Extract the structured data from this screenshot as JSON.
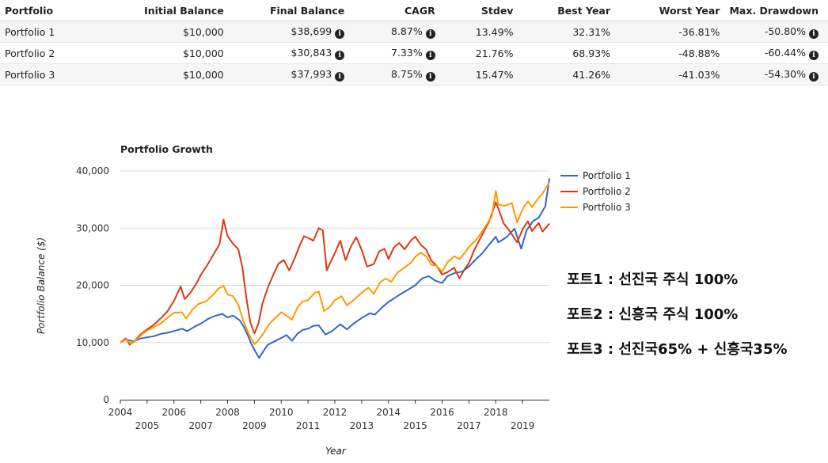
{
  "table": {
    "headers": [
      "Portfolio",
      "Initial Balance",
      "Final Balance",
      "CAGR",
      "Stdev",
      "Best Year",
      "Worst Year",
      "Max. Drawdown"
    ],
    "rows": [
      {
        "portfolio": "Portfolio 1",
        "initial": "$10,000",
        "final": "$38,699",
        "cagr": "8.87%",
        "stdev": "13.49%",
        "best": "32.31%",
        "worst": "-36.81%",
        "drawdown": "-50.80%"
      },
      {
        "portfolio": "Portfolio 2",
        "initial": "$10,000",
        "final": "$30,843",
        "cagr": "7.33%",
        "stdev": "21.76%",
        "best": "68.93%",
        "worst": "-48.88%",
        "drawdown": "-60.44%"
      },
      {
        "portfolio": "Portfolio 3",
        "initial": "$10,000",
        "final": "$37,993",
        "cagr": "8.75%",
        "stdev": "15.47%",
        "best": "41.26%",
        "worst": "-41.03%",
        "drawdown": "-54.30%"
      }
    ],
    "info_icon": "info-circle-icon"
  },
  "annotation": {
    "lines": [
      "포트1 : 선진국 주식 100%",
      "포트2 : 신흥국 주식 100%",
      "포트3 : 선진국65% + 신흥국35%"
    ]
  },
  "chart_data": {
    "type": "line",
    "title": "Portfolio Growth",
    "xlabel": "Year",
    "ylabel": "Portfolio Balance ($)",
    "xlim": [
      2004,
      2020
    ],
    "ylim": [
      0,
      40000
    ],
    "x_ticks": [
      2004,
      2005,
      2006,
      2007,
      2008,
      2009,
      2010,
      2011,
      2012,
      2013,
      2014,
      2015,
      2016,
      2017,
      2018,
      2019
    ],
    "y_ticks": [
      0,
      10000,
      20000,
      30000,
      40000
    ],
    "y_tick_labels": [
      "0",
      "10,000",
      "20,000",
      "30,000",
      "40,000"
    ],
    "grid": true,
    "legend": "top-right",
    "series": [
      {
        "name": "Portfolio 1",
        "color": "#3366cc",
        "points": [
          [
            2004.0,
            10000
          ],
          [
            2004.2,
            10500
          ],
          [
            2004.5,
            10200
          ],
          [
            2004.75,
            10700
          ],
          [
            2005.0,
            10900
          ],
          [
            2005.25,
            11100
          ],
          [
            2005.5,
            11500
          ],
          [
            2005.75,
            11700
          ],
          [
            2006.0,
            12000
          ],
          [
            2006.3,
            12400
          ],
          [
            2006.5,
            12000
          ],
          [
            2006.75,
            12700
          ],
          [
            2007.0,
            13300
          ],
          [
            2007.3,
            14200
          ],
          [
            2007.5,
            14600
          ],
          [
            2007.8,
            15000
          ],
          [
            2008.0,
            14400
          ],
          [
            2008.2,
            14700
          ],
          [
            2008.45,
            13900
          ],
          [
            2008.6,
            12800
          ],
          [
            2008.75,
            11300
          ],
          [
            2008.9,
            9600
          ],
          [
            2009.05,
            8300
          ],
          [
            2009.18,
            7300
          ],
          [
            2009.35,
            8600
          ],
          [
            2009.5,
            9600
          ],
          [
            2009.75,
            10200
          ],
          [
            2010.0,
            10800
          ],
          [
            2010.2,
            11300
          ],
          [
            2010.4,
            10300
          ],
          [
            2010.6,
            11500
          ],
          [
            2010.8,
            12200
          ],
          [
            2011.0,
            12400
          ],
          [
            2011.2,
            12900
          ],
          [
            2011.4,
            13000
          ],
          [
            2011.65,
            11400
          ],
          [
            2011.9,
            12000
          ],
          [
            2012.2,
            13200
          ],
          [
            2012.45,
            12300
          ],
          [
            2012.7,
            13300
          ],
          [
            2013.0,
            14300
          ],
          [
            2013.3,
            15100
          ],
          [
            2013.5,
            14900
          ],
          [
            2013.75,
            16100
          ],
          [
            2014.0,
            17100
          ],
          [
            2014.3,
            18000
          ],
          [
            2014.5,
            18600
          ],
          [
            2014.75,
            19300
          ],
          [
            2015.0,
            20000
          ],
          [
            2015.25,
            21200
          ],
          [
            2015.5,
            21600
          ],
          [
            2015.75,
            20800
          ],
          [
            2016.0,
            20400
          ],
          [
            2016.2,
            21600
          ],
          [
            2016.5,
            22200
          ],
          [
            2016.75,
            22400
          ],
          [
            2017.0,
            23300
          ],
          [
            2017.25,
            24500
          ],
          [
            2017.5,
            25600
          ],
          [
            2017.75,
            27100
          ],
          [
            2018.0,
            28500
          ],
          [
            2018.1,
            27500
          ],
          [
            2018.4,
            28400
          ],
          [
            2018.7,
            29900
          ],
          [
            2018.95,
            26400
          ],
          [
            2019.15,
            29600
          ],
          [
            2019.4,
            31300
          ],
          [
            2019.6,
            31800
          ],
          [
            2019.85,
            33800
          ],
          [
            2020.0,
            38700
          ]
        ]
      },
      {
        "name": "Portfolio 2",
        "color": "#dc3912",
        "points": [
          [
            2004.0,
            10000
          ],
          [
            2004.2,
            10700
          ],
          [
            2004.35,
            9600
          ],
          [
            2004.5,
            10100
          ],
          [
            2004.75,
            11400
          ],
          [
            2005.0,
            12300
          ],
          [
            2005.25,
            13100
          ],
          [
            2005.5,
            14200
          ],
          [
            2005.75,
            15400
          ],
          [
            2006.0,
            17300
          ],
          [
            2006.25,
            19800
          ],
          [
            2006.4,
            17600
          ],
          [
            2006.6,
            18600
          ],
          [
            2006.85,
            20400
          ],
          [
            2007.0,
            21800
          ],
          [
            2007.25,
            23600
          ],
          [
            2007.5,
            25600
          ],
          [
            2007.7,
            27200
          ],
          [
            2007.85,
            31500
          ],
          [
            2008.0,
            28600
          ],
          [
            2008.2,
            27300
          ],
          [
            2008.4,
            26300
          ],
          [
            2008.55,
            23200
          ],
          [
            2008.7,
            17800
          ],
          [
            2008.85,
            13500
          ],
          [
            2009.0,
            11600
          ],
          [
            2009.15,
            13300
          ],
          [
            2009.3,
            16800
          ],
          [
            2009.5,
            19600
          ],
          [
            2009.7,
            21800
          ],
          [
            2009.9,
            23800
          ],
          [
            2010.1,
            24400
          ],
          [
            2010.3,
            22600
          ],
          [
            2010.5,
            24700
          ],
          [
            2010.7,
            27100
          ],
          [
            2010.85,
            28600
          ],
          [
            2011.0,
            28300
          ],
          [
            2011.2,
            27800
          ],
          [
            2011.4,
            30000
          ],
          [
            2011.55,
            29600
          ],
          [
            2011.7,
            22600
          ],
          [
            2011.85,
            24200
          ],
          [
            2012.0,
            25600
          ],
          [
            2012.2,
            27800
          ],
          [
            2012.4,
            24400
          ],
          [
            2012.6,
            26800
          ],
          [
            2012.8,
            28400
          ],
          [
            2013.0,
            26200
          ],
          [
            2013.2,
            23300
          ],
          [
            2013.45,
            23700
          ],
          [
            2013.65,
            25900
          ],
          [
            2013.85,
            26400
          ],
          [
            2014.0,
            24600
          ],
          [
            2014.2,
            26600
          ],
          [
            2014.4,
            27400
          ],
          [
            2014.6,
            26300
          ],
          [
            2014.85,
            27900
          ],
          [
            2015.0,
            28500
          ],
          [
            2015.2,
            27100
          ],
          [
            2015.4,
            26300
          ],
          [
            2015.6,
            24300
          ],
          [
            2015.8,
            23400
          ],
          [
            2016.0,
            21900
          ],
          [
            2016.2,
            22300
          ],
          [
            2016.45,
            23100
          ],
          [
            2016.65,
            21200
          ],
          [
            2016.85,
            22900
          ],
          [
            2017.0,
            23900
          ],
          [
            2017.2,
            26200
          ],
          [
            2017.5,
            28900
          ],
          [
            2017.75,
            31100
          ],
          [
            2018.0,
            34500
          ],
          [
            2018.1,
            33400
          ],
          [
            2018.3,
            30800
          ],
          [
            2018.55,
            29300
          ],
          [
            2018.8,
            27500
          ],
          [
            2019.0,
            29800
          ],
          [
            2019.2,
            31200
          ],
          [
            2019.35,
            29500
          ],
          [
            2019.6,
            30900
          ],
          [
            2019.75,
            29400
          ],
          [
            2020.0,
            30800
          ]
        ]
      },
      {
        "name": "Portfolio 3",
        "color": "#ff9900",
        "points": [
          [
            2004.0,
            10000
          ],
          [
            2004.2,
            10500
          ],
          [
            2004.4,
            9800
          ],
          [
            2004.6,
            10500
          ],
          [
            2004.8,
            11400
          ],
          [
            2005.0,
            12100
          ],
          [
            2005.25,
            12700
          ],
          [
            2005.5,
            13300
          ],
          [
            2005.75,
            14300
          ],
          [
            2006.0,
            15200
          ],
          [
            2006.3,
            15300
          ],
          [
            2006.45,
            14200
          ],
          [
            2006.7,
            15800
          ],
          [
            2006.9,
            16700
          ],
          [
            2007.2,
            17200
          ],
          [
            2007.5,
            18500
          ],
          [
            2007.65,
            19400
          ],
          [
            2007.85,
            19900
          ],
          [
            2008.0,
            18400
          ],
          [
            2008.2,
            18100
          ],
          [
            2008.4,
            16600
          ],
          [
            2008.6,
            13600
          ],
          [
            2008.8,
            11400
          ],
          [
            2009.0,
            9700
          ],
          [
            2009.15,
            10400
          ],
          [
            2009.35,
            11700
          ],
          [
            2009.55,
            13200
          ],
          [
            2009.8,
            14400
          ],
          [
            2010.0,
            15300
          ],
          [
            2010.2,
            14700
          ],
          [
            2010.4,
            14000
          ],
          [
            2010.6,
            16100
          ],
          [
            2010.8,
            17200
          ],
          [
            2011.0,
            17400
          ],
          [
            2011.25,
            18700
          ],
          [
            2011.4,
            18900
          ],
          [
            2011.6,
            15500
          ],
          [
            2011.8,
            16200
          ],
          [
            2012.0,
            17400
          ],
          [
            2012.25,
            18100
          ],
          [
            2012.45,
            16500
          ],
          [
            2012.7,
            17400
          ],
          [
            2013.0,
            18700
          ],
          [
            2013.25,
            19600
          ],
          [
            2013.45,
            18500
          ],
          [
            2013.7,
            20600
          ],
          [
            2013.9,
            21200
          ],
          [
            2014.1,
            20600
          ],
          [
            2014.35,
            22300
          ],
          [
            2014.6,
            23100
          ],
          [
            2014.85,
            24000
          ],
          [
            2015.0,
            25000
          ],
          [
            2015.2,
            25700
          ],
          [
            2015.4,
            25100
          ],
          [
            2015.6,
            23600
          ],
          [
            2015.8,
            23400
          ],
          [
            2016.0,
            22400
          ],
          [
            2016.2,
            24000
          ],
          [
            2016.45,
            25100
          ],
          [
            2016.65,
            24600
          ],
          [
            2016.85,
            25700
          ],
          [
            2017.0,
            26700
          ],
          [
            2017.3,
            28100
          ],
          [
            2017.6,
            30200
          ],
          [
            2017.85,
            32000
          ],
          [
            2018.0,
            36500
          ],
          [
            2018.1,
            34100
          ],
          [
            2018.35,
            33900
          ],
          [
            2018.6,
            34400
          ],
          [
            2018.8,
            31000
          ],
          [
            2019.0,
            33300
          ],
          [
            2019.2,
            34700
          ],
          [
            2019.35,
            33700
          ],
          [
            2019.55,
            35000
          ],
          [
            2019.75,
            36100
          ],
          [
            2020.0,
            38000
          ]
        ]
      }
    ]
  }
}
